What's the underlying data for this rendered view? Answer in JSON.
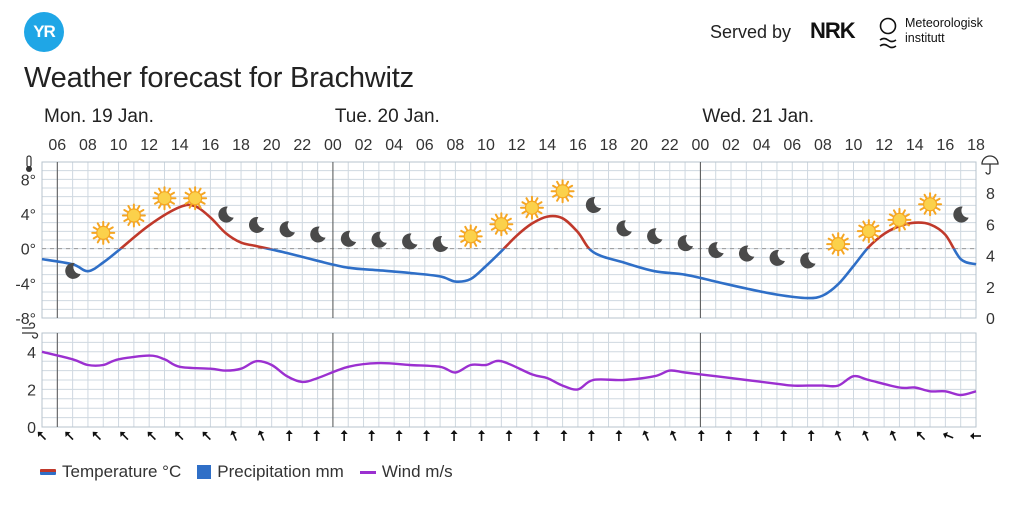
{
  "header": {
    "logo_text": "YR",
    "served_by": "Served by",
    "nrk_logo": "NRK",
    "met_line1": "Meteorologisk",
    "met_line2": "institutt"
  },
  "title": "Weather forecast for Brachwitz",
  "legend": {
    "temperature": "Temperature °C",
    "precipitation": "Precipitation mm",
    "wind": "Wind m/s"
  },
  "colors": {
    "temp_warm": "#c0392b",
    "temp_cold": "#2f6fc7",
    "wind": "#9b30d0",
    "grid": "#cfd8e0",
    "sun": "#f5a623",
    "moon": "#4a4a4a"
  },
  "chart_data": [
    {
      "type": "line",
      "title": "",
      "days": [
        {
          "label": "Mon. 19 Jan.",
          "start_hour": 6
        },
        {
          "label": "Tue. 20 Jan.",
          "start_hour": 24
        },
        {
          "label": "Wed. 21 Jan.",
          "start_hour": 48
        }
      ],
      "x_ticks": [
        "06",
        "08",
        "10",
        "12",
        "14",
        "16",
        "18",
        "20",
        "22",
        "00",
        "02",
        "04",
        "06",
        "08",
        "10",
        "12",
        "14",
        "16",
        "18",
        "20",
        "22",
        "00",
        "02",
        "04",
        "06",
        "08",
        "10",
        "12",
        "14",
        "16",
        "18"
      ],
      "x_range_hours": [
        5,
        66
      ],
      "ylabel": "°C",
      "y_ticks": [
        "8°",
        "4°",
        "0°",
        "-4°",
        "-8°"
      ],
      "ylim": [
        -8,
        10
      ],
      "y2_ticks": [
        "8",
        "6",
        "4",
        "2",
        "0"
      ],
      "y2lim": [
        0,
        10
      ],
      "y2label": "mm",
      "series": [
        {
          "name": "Temperature °C",
          "x_hours": [
            5,
            7,
            8,
            9,
            10,
            12,
            14,
            15,
            16,
            17,
            18,
            19,
            21,
            23,
            25,
            27,
            29,
            31,
            32,
            33,
            34,
            35,
            36,
            37,
            38,
            39,
            40,
            41,
            43,
            45,
            47,
            49,
            51,
            53,
            55,
            56,
            57,
            58,
            59,
            60,
            61,
            62,
            63,
            64,
            65,
            66
          ],
          "values": [
            -1.2,
            -1.8,
            -2.6,
            -1.6,
            -0.2,
            2.7,
            4.8,
            4.9,
            3.6,
            1.8,
            0.7,
            0.3,
            -0.5,
            -1.4,
            -2.2,
            -2.5,
            -2.8,
            -3.2,
            -3.8,
            -3.5,
            -2,
            -0.3,
            1.5,
            2.9,
            3.7,
            3.5,
            1.9,
            -0.4,
            -1.6,
            -2.6,
            -3,
            -3.8,
            -4.6,
            -5.3,
            -5.7,
            -5.4,
            -4.1,
            -2,
            0.2,
            1.7,
            2.6,
            3,
            2.8,
            1.6,
            -1.2,
            -1.8
          ]
        },
        {
          "name": "Precipitation mm",
          "values": []
        }
      ],
      "symbols": [
        {
          "hour": 7,
          "kind": "moon"
        },
        {
          "hour": 9,
          "kind": "sun"
        },
        {
          "hour": 11,
          "kind": "sun"
        },
        {
          "hour": 13,
          "kind": "sun"
        },
        {
          "hour": 15,
          "kind": "sun"
        },
        {
          "hour": 17,
          "kind": "moon"
        },
        {
          "hour": 19,
          "kind": "moon"
        },
        {
          "hour": 21,
          "kind": "moon"
        },
        {
          "hour": 23,
          "kind": "moon"
        },
        {
          "hour": 25,
          "kind": "moon"
        },
        {
          "hour": 27,
          "kind": "moon"
        },
        {
          "hour": 29,
          "kind": "moon"
        },
        {
          "hour": 31,
          "kind": "moon"
        },
        {
          "hour": 33,
          "kind": "sun"
        },
        {
          "hour": 35,
          "kind": "sun"
        },
        {
          "hour": 37,
          "kind": "sun"
        },
        {
          "hour": 39,
          "kind": "sun"
        },
        {
          "hour": 41,
          "kind": "moon"
        },
        {
          "hour": 43,
          "kind": "moon"
        },
        {
          "hour": 45,
          "kind": "moon"
        },
        {
          "hour": 47,
          "kind": "moon"
        },
        {
          "hour": 49,
          "kind": "moon"
        },
        {
          "hour": 51,
          "kind": "moon"
        },
        {
          "hour": 53,
          "kind": "moon"
        },
        {
          "hour": 55,
          "kind": "moon"
        },
        {
          "hour": 57,
          "kind": "sun"
        },
        {
          "hour": 59,
          "kind": "sun"
        },
        {
          "hour": 61,
          "kind": "sun"
        },
        {
          "hour": 63,
          "kind": "sun"
        },
        {
          "hour": 65,
          "kind": "moon"
        }
      ],
      "symbol_values": [
        -3.5,
        0.9,
        2.9,
        4.9,
        4.9,
        3,
        1.8,
        1.3,
        0.7,
        0.2,
        0.1,
        -0.1,
        -0.4,
        0.5,
        1.9,
        3.8,
        5.7,
        4.1,
        1.4,
        0.5,
        -0.3,
        -1.1,
        -1.5,
        -2,
        -2.3,
        -0.4,
        1.1,
        2.4,
        4.2,
        3
      ]
    },
    {
      "type": "line",
      "title": "",
      "ylabel": "m/s",
      "y_ticks": [
        "4",
        "2",
        "0"
      ],
      "ylim": [
        0,
        5
      ],
      "series": [
        {
          "name": "Wind m/s",
          "x_hours": [
            5,
            7,
            8,
            9,
            10,
            12,
            13,
            14,
            16,
            17,
            18,
            19,
            20,
            21,
            22,
            23,
            25,
            27,
            29,
            31,
            32,
            33,
            34,
            35,
            37,
            38,
            39,
            40,
            41,
            43,
            45,
            46,
            47,
            49,
            51,
            53,
            54,
            55,
            56,
            57,
            58,
            59,
            61,
            62,
            63,
            64,
            65,
            66
          ],
          "values": [
            4,
            3.6,
            3.3,
            3.3,
            3.6,
            3.8,
            3.6,
            3.2,
            3.1,
            3,
            3.1,
            3.5,
            3.3,
            2.7,
            2.4,
            2.6,
            3.2,
            3.4,
            3.3,
            3.2,
            2.9,
            3.3,
            3.3,
            3.5,
            2.8,
            2.6,
            2.2,
            2,
            2.5,
            2.5,
            2.7,
            3,
            2.9,
            2.7,
            2.5,
            2.3,
            2.2,
            2.2,
            2.2,
            2.2,
            2.7,
            2.5,
            2.1,
            2.1,
            1.9,
            1.9,
            1.7,
            1.9
          ]
        }
      ],
      "wind_directions_deg": [
        135,
        135,
        135,
        135,
        135,
        135,
        135,
        157,
        157,
        180,
        180,
        180,
        180,
        180,
        180,
        180,
        180,
        180,
        180,
        180,
        180,
        180,
        157,
        157,
        180,
        180,
        180,
        180,
        180,
        157,
        157,
        157,
        135,
        112,
        90
      ]
    }
  ]
}
